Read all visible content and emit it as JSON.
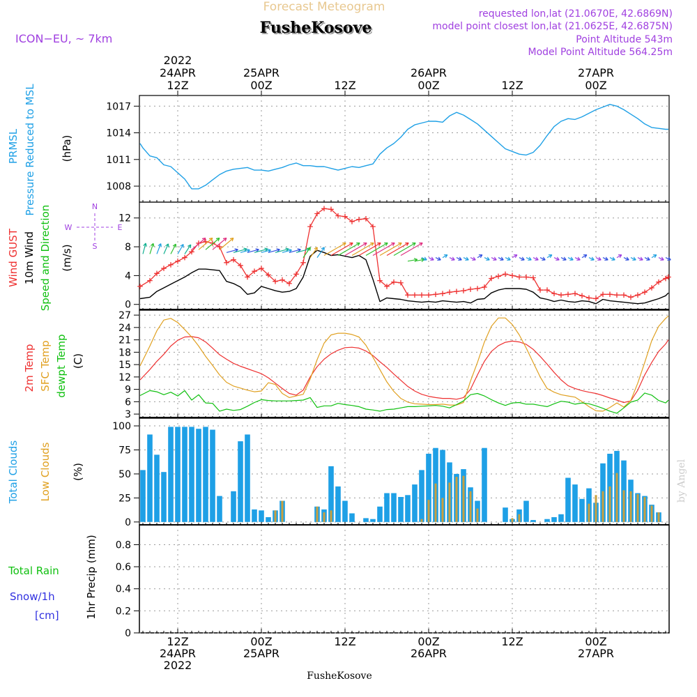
{
  "header": {
    "top_title": "Forecast Meteogram",
    "model": "ICON−EU, ~ 7km",
    "location": "FusheKosove",
    "requested": "requested lon,lat (21.0670E, 42.6869N)",
    "closest": "model point closest lon,lat (21.0625E, 42.6875N)",
    "point_alt": "Point Altitude 543m",
    "model_alt": "Model Point Altitude 564.25m",
    "footer_location": "FusheKosove",
    "credit": "by Angel"
  },
  "colors": {
    "pressure": "#1ea0e6",
    "gust": "#ee3030",
    "wind": "#000000",
    "temp": "#ee3030",
    "sfc": "#e0a020",
    "dewpt": "#10c010",
    "total_clouds": "#1ea0e6",
    "low_clouds": "#c8a040",
    "rain": "#10c010",
    "snow": "#3030e0",
    "purple": "#a040e0"
  },
  "time_axis": {
    "top_ticks": [
      {
        "t": 12,
        "lines": [
          "2022",
          "24APR",
          "12Z"
        ]
      },
      {
        "t": 24,
        "lines": [
          "25APR",
          "00Z"
        ]
      },
      {
        "t": 36,
        "lines": [
          "12Z"
        ]
      },
      {
        "t": 48,
        "lines": [
          "26APR",
          "00Z"
        ]
      },
      {
        "t": 60,
        "lines": [
          "12Z"
        ]
      },
      {
        "t": 72,
        "lines": [
          "27APR",
          "00Z"
        ]
      }
    ],
    "bottom_ticks": [
      {
        "t": 12,
        "lines": [
          "12Z",
          "24APR",
          "2022"
        ]
      },
      {
        "t": 24,
        "lines": [
          "00Z",
          "25APR"
        ]
      },
      {
        "t": 36,
        "lines": [
          "12Z"
        ]
      },
      {
        "t": 48,
        "lines": [
          "00Z",
          "26APR"
        ]
      },
      {
        "t": 60,
        "lines": [
          "12Z"
        ]
      },
      {
        "t": 72,
        "lines": [
          "00Z",
          "27APR"
        ]
      }
    ],
    "t_start": 6.5,
    "t_end": 82.5
  },
  "chart_data": [
    {
      "type": "line",
      "panel": "pressure",
      "title": "PRMSL Pressure Reduced to MSL",
      "label_lines": [
        "PRMSL",
        "Pressure Reduced to MSL"
      ],
      "ylabel": "(hPa)",
      "ylim": [
        1006.2,
        1018.2
      ],
      "yticks": [
        1008,
        1011,
        1014,
        1017
      ],
      "x": [
        6.6,
        7,
        8,
        9,
        10,
        11,
        12,
        13,
        14,
        15,
        16,
        17,
        18,
        19,
        20,
        21,
        22,
        23,
        24,
        25,
        26,
        27,
        28,
        29,
        30,
        31,
        32,
        33,
        34,
        35,
        36,
        37,
        38,
        39,
        40,
        41,
        42,
        43,
        44,
        45,
        46,
        47,
        48,
        49,
        50,
        51,
        52,
        53,
        54,
        55,
        56,
        57,
        58,
        59,
        60,
        61,
        62,
        63,
        64,
        65,
        66,
        67,
        68,
        69,
        70,
        71,
        72,
        73,
        74,
        75,
        76,
        77,
        78,
        79,
        80,
        81,
        82,
        82.4
      ],
      "values": [
        1012.8,
        1012.3,
        1011.4,
        1011.2,
        1010.4,
        1010.2,
        1009.5,
        1008.8,
        1007.7,
        1007.7,
        1008.1,
        1008.7,
        1009.3,
        1009.7,
        1009.9,
        1010.0,
        1010.1,
        1009.8,
        1009.8,
        1009.7,
        1009.9,
        1010.1,
        1010.4,
        1010.6,
        1010.3,
        1010.3,
        1010.2,
        1010.2,
        1010.0,
        1009.8,
        1010.0,
        1010.2,
        1010.1,
        1010.3,
        1010.5,
        1011.6,
        1012.3,
        1012.8,
        1013.5,
        1014.4,
        1014.9,
        1015.1,
        1015.3,
        1015.3,
        1015.2,
        1015.9,
        1016.3,
        1016.0,
        1015.5,
        1015.0,
        1014.3,
        1013.6,
        1012.9,
        1012.2,
        1011.9,
        1011.6,
        1011.5,
        1011.8,
        1012.6,
        1013.7,
        1014.7,
        1015.3,
        1015.6,
        1015.5,
        1015.8,
        1016.2,
        1016.6,
        1016.9,
        1017.2,
        1017.0,
        1016.6,
        1016.1,
        1015.6,
        1015.0,
        1014.6,
        1014.5,
        1014.4,
        1014.4
      ]
    },
    {
      "type": "line",
      "panel": "wind",
      "title": "Wind GUST, 10m Wind Speed and Direction",
      "label_lines": [
        "Wind GUST",
        "10m Wind",
        "Speed and Direction"
      ],
      "ylabel": "(m/s)",
      "compass": [
        "N",
        "W",
        "E",
        "S"
      ],
      "ylim": [
        -0.8,
        14.2
      ],
      "yticks": [
        0,
        4,
        8,
        12
      ],
      "x": [
        6.6,
        8,
        9,
        10,
        11,
        12,
        13,
        14,
        15,
        16,
        17,
        18,
        19,
        20,
        21,
        22,
        23,
        24,
        25,
        26,
        27,
        28,
        29,
        30,
        31,
        32,
        33,
        34,
        35,
        36,
        37,
        38,
        39,
        40,
        41,
        42,
        43,
        44,
        45,
        46,
        47,
        48,
        49,
        50,
        51,
        52,
        53,
        54,
        55,
        56,
        57,
        58,
        59,
        60,
        61,
        62,
        63,
        64,
        65,
        66,
        67,
        68,
        69,
        70,
        71,
        72,
        73,
        74,
        75,
        76,
        77,
        78,
        79,
        80,
        81,
        82,
        82.4
      ],
      "series": [
        {
          "name": "Wind GUST",
          "values": [
            2.5,
            3.3,
            4.3,
            5.0,
            5.5,
            6.0,
            6.5,
            7.3,
            8.5,
            8.7,
            8.5,
            8.0,
            5.8,
            6.2,
            5.4,
            3.8,
            4.6,
            5.0,
            4.1,
            3.2,
            3.4,
            2.9,
            4.2,
            5.8,
            10.8,
            12.6,
            13.3,
            13.2,
            12.3,
            12.2,
            11.5,
            11.8,
            11.9,
            10.8,
            3.3,
            2.5,
            3.1,
            3.0,
            1.3,
            1.3,
            1.3,
            1.3,
            1.4,
            1.5,
            1.7,
            1.8,
            1.9,
            2.1,
            2.2,
            2.4,
            3.6,
            3.9,
            4.2,
            4.0,
            3.8,
            3.8,
            3.7,
            2.0,
            2.0,
            1.5,
            1.3,
            1.4,
            1.5,
            1.2,
            0.9,
            0.8,
            1.4,
            1.4,
            1.3,
            1.3,
            1.0,
            1.3,
            1.7,
            2.3,
            3.1,
            3.6,
            3.8
          ]
        },
        {
          "name": "10m Wind",
          "values": [
            0.8,
            1.0,
            1.8,
            2.3,
            2.8,
            3.3,
            3.8,
            4.4,
            4.9,
            4.9,
            4.8,
            4.7,
            3.2,
            2.9,
            2.4,
            1.4,
            1.6,
            2.5,
            2.2,
            1.9,
            1.7,
            1.8,
            2.2,
            3.8,
            6.7,
            7.5,
            7.2,
            6.8,
            6.9,
            6.7,
            6.5,
            6.8,
            6.2,
            3.5,
            0.4,
            0.9,
            0.8,
            0.7,
            0.5,
            0.4,
            0.3,
            0.4,
            0.3,
            0.5,
            0.4,
            0.3,
            0.4,
            0.2,
            0.7,
            0.8,
            1.6,
            2.0,
            2.2,
            2.2,
            2.2,
            2.1,
            1.7,
            0.9,
            0.7,
            0.4,
            0.6,
            0.4,
            0.3,
            0.5,
            0.4,
            0.1,
            0.7,
            0.5,
            0.4,
            0.3,
            0.2,
            0.1,
            0.2,
            0.5,
            0.8,
            1.2,
            1.6
          ]
        }
      ]
    },
    {
      "type": "line",
      "panel": "temperature",
      "title": "2m Temp, SFC Temp, dewpt Temp",
      "label_lines": [
        "2m Temp",
        "SFC Temp",
        "dewpt Temp"
      ],
      "ylabel": "(C)",
      "ylim": [
        2,
        28.2
      ],
      "yticks": [
        3,
        6,
        9,
        12,
        15,
        18,
        21,
        24,
        27
      ],
      "x": [
        6.6,
        8,
        9,
        10,
        11,
        12,
        13,
        14,
        15,
        16,
        17,
        18,
        19,
        20,
        21,
        22,
        23,
        24,
        25,
        26,
        27,
        28,
        29,
        30,
        31,
        32,
        33,
        34,
        35,
        36,
        37,
        38,
        39,
        40,
        41,
        42,
        43,
        44,
        45,
        46,
        47,
        48,
        49,
        50,
        51,
        52,
        53,
        54,
        55,
        56,
        57,
        58,
        59,
        60,
        61,
        62,
        63,
        64,
        65,
        66,
        67,
        68,
        69,
        70,
        71,
        72,
        73,
        74,
        75,
        76,
        77,
        78,
        79,
        80,
        81,
        82,
        82.4
      ],
      "series": [
        {
          "name": "2m Temp",
          "values": [
            11.3,
            13.8,
            15.8,
            17.5,
            19.5,
            20.9,
            21.7,
            21.8,
            21.5,
            20.5,
            19.0,
            17.4,
            16.3,
            15.3,
            14.6,
            14.0,
            13.4,
            12.8,
            11.8,
            10.5,
            9.2,
            8.0,
            7.6,
            8.8,
            12.0,
            14.5,
            16.3,
            17.6,
            18.5,
            19.1,
            19.2,
            19.0,
            18.3,
            17.2,
            15.7,
            14.3,
            12.7,
            11.2,
            9.7,
            8.6,
            7.8,
            7.3,
            7.0,
            6.8,
            6.8,
            6.6,
            7.0,
            9.0,
            12.5,
            15.8,
            18.2,
            19.6,
            20.4,
            20.7,
            20.5,
            19.9,
            18.7,
            17.0,
            15.1,
            13.1,
            11.3,
            9.9,
            9.2,
            8.7,
            8.3,
            8.0,
            7.5,
            6.9,
            6.4,
            5.8,
            6.2,
            8.8,
            12.5,
            15.5,
            18.2,
            20.0,
            21.0
          ]
        },
        {
          "name": "SFC Temp",
          "values": [
            14.7,
            19.5,
            23.2,
            25.8,
            26.2,
            25.2,
            23.5,
            21.7,
            19.5,
            17.0,
            14.8,
            12.5,
            10.7,
            9.8,
            9.3,
            8.8,
            8.4,
            8.6,
            10.6,
            10.2,
            8.0,
            7.0,
            7.4,
            7.8,
            11.5,
            16.2,
            20.2,
            22.2,
            22.6,
            22.6,
            22.3,
            21.7,
            19.7,
            16.8,
            13.8,
            10.8,
            8.5,
            6.8,
            5.9,
            5.5,
            5.4,
            5.3,
            5.3,
            5.4,
            5.2,
            5.2,
            5.8,
            11.0,
            15.5,
            20.5,
            24.3,
            26.3,
            26.3,
            24.7,
            22.2,
            19.0,
            15.5,
            12.0,
            9.2,
            8.3,
            7.7,
            7.4,
            7.1,
            6.0,
            4.8,
            3.8,
            3.7,
            4.6,
            5.7,
            4.7,
            6.3,
            10.5,
            15.5,
            20.8,
            24.3,
            26.2,
            26.8
          ]
        },
        {
          "name": "dewpt Temp",
          "values": [
            7.5,
            8.7,
            8.4,
            7.7,
            8.3,
            7.4,
            8.7,
            6.4,
            7.7,
            5.7,
            5.6,
            3.7,
            4.2,
            3.9,
            4.1,
            4.9,
            5.8,
            6.5,
            6.3,
            6.2,
            6.2,
            6.2,
            6.3,
            6.4,
            7.0,
            4.6,
            5.0,
            5.0,
            5.6,
            5.3,
            5.1,
            4.8,
            4.2,
            4.0,
            3.7,
            4.1,
            4.2,
            4.5,
            4.8,
            4.8,
            4.9,
            5.0,
            5.1,
            4.9,
            4.5,
            5.3,
            6.2,
            7.7,
            8.0,
            7.4,
            6.5,
            5.7,
            5.1,
            5.7,
            5.8,
            5.4,
            5.4,
            5.1,
            4.8,
            5.5,
            6.1,
            5.9,
            5.4,
            5.7,
            5.5,
            5.0,
            4.4,
            3.7,
            3.2,
            4.5,
            5.9,
            6.4,
            8.1,
            7.6,
            6.3,
            5.7,
            6.4
          ]
        }
      ]
    },
    {
      "type": "bar",
      "panel": "clouds",
      "title": "Total Clouds, Low Clouds",
      "label_lines": [
        "Total Clouds",
        "Low Clouds"
      ],
      "ylabel": "(%)",
      "ylim": [
        -3,
        108
      ],
      "yticks": [
        0,
        25,
        50,
        75,
        100
      ],
      "x": [
        7,
        8,
        9,
        10,
        11,
        12,
        13,
        14,
        15,
        16,
        17,
        18,
        19,
        20,
        21,
        22,
        23,
        24,
        25,
        26,
        27,
        28,
        29,
        30,
        31,
        32,
        33,
        34,
        35,
        36,
        37,
        38,
        39,
        40,
        41,
        42,
        43,
        44,
        45,
        46,
        47,
        48,
        49,
        50,
        51,
        52,
        53,
        54,
        55,
        56,
        57,
        58,
        59,
        60,
        61,
        62,
        63,
        64,
        65,
        66,
        67,
        68,
        69,
        70,
        71,
        72,
        73,
        74,
        75,
        76,
        77,
        78,
        79,
        80,
        81,
        82
      ],
      "series": [
        {
          "name": "Total Clouds",
          "values": [
            54,
            91,
            70,
            52,
            99,
            99,
            99,
            99,
            97,
            99,
            96,
            27,
            0,
            32,
            84,
            91,
            13,
            12,
            5,
            12,
            22,
            0,
            0,
            0,
            0,
            16,
            13,
            58,
            37,
            22,
            9,
            0,
            4,
            3,
            16,
            30,
            30,
            26,
            28,
            39,
            54,
            71,
            77,
            75,
            62,
            50,
            55,
            36,
            22,
            77,
            0,
            0,
            15,
            3,
            13,
            22,
            2,
            0,
            3,
            5,
            8,
            46,
            39,
            24,
            35,
            20,
            61,
            71,
            74,
            64,
            44,
            30,
            27,
            18,
            10,
            0
          ]
        },
        {
          "name": "Low Clouds",
          "values": [
            0,
            0,
            0,
            0,
            0,
            0,
            0,
            0,
            0,
            0,
            0,
            0,
            0,
            0,
            0,
            0,
            0,
            0,
            0,
            12,
            22,
            0,
            0,
            0,
            0,
            16,
            10,
            12,
            0,
            0,
            0,
            0,
            0,
            0,
            0,
            0,
            0,
            0,
            0,
            0,
            3,
            23,
            40,
            25,
            41,
            47,
            48,
            32,
            14,
            0,
            0,
            0,
            0,
            4,
            8,
            0,
            0,
            0,
            0,
            0,
            0,
            0,
            0,
            0,
            19,
            28,
            32,
            37,
            51,
            33,
            32,
            29,
            26,
            17,
            10,
            0
          ]
        }
      ]
    },
    {
      "type": "bar",
      "panel": "precip",
      "title": "1hr Precip (mm)",
      "label_lines": [
        "Total  Rain",
        "Snow/1h",
        "[cm]"
      ],
      "ylabel": "1hr Precip (mm)",
      "ylim": [
        0,
        0.98
      ],
      "yticks": [
        0,
        0.2,
        0.4,
        0.6,
        0.8
      ],
      "ytick_labels": [
        "0",
        "0.2",
        "0.4",
        "0.6",
        "0.8"
      ],
      "series": [
        {
          "name": "Total Rain",
          "values": []
        },
        {
          "name": "Snow",
          "values": []
        }
      ]
    }
  ]
}
